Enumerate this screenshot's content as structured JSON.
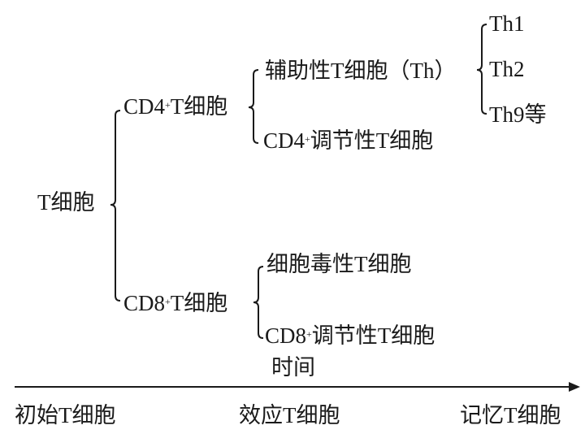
{
  "root": {
    "label": "T细胞"
  },
  "cd4": {
    "prefix": "CD4",
    "sup": "+",
    "suffix": "T细胞",
    "children": {
      "helper": {
        "label": "辅助性T细胞（Th）",
        "subtypes": [
          "Th1",
          "Th2",
          "Th9等"
        ]
      },
      "regulatory": {
        "prefix": "CD4",
        "sup": "+",
        "suffix": "调节性T细胞"
      }
    }
  },
  "cd8": {
    "prefix": "CD8",
    "sup": "+",
    "suffix": "T细胞",
    "children": {
      "cytotoxic": {
        "label": "细胞毒性T细胞"
      },
      "regulatory": {
        "prefix": "CD8",
        "sup": "+",
        "suffix": "调节性T细胞"
      }
    }
  },
  "timeline": {
    "axis_label": "时间",
    "stages": [
      "初始T细胞",
      "效应T细胞",
      "记忆T细胞"
    ]
  }
}
